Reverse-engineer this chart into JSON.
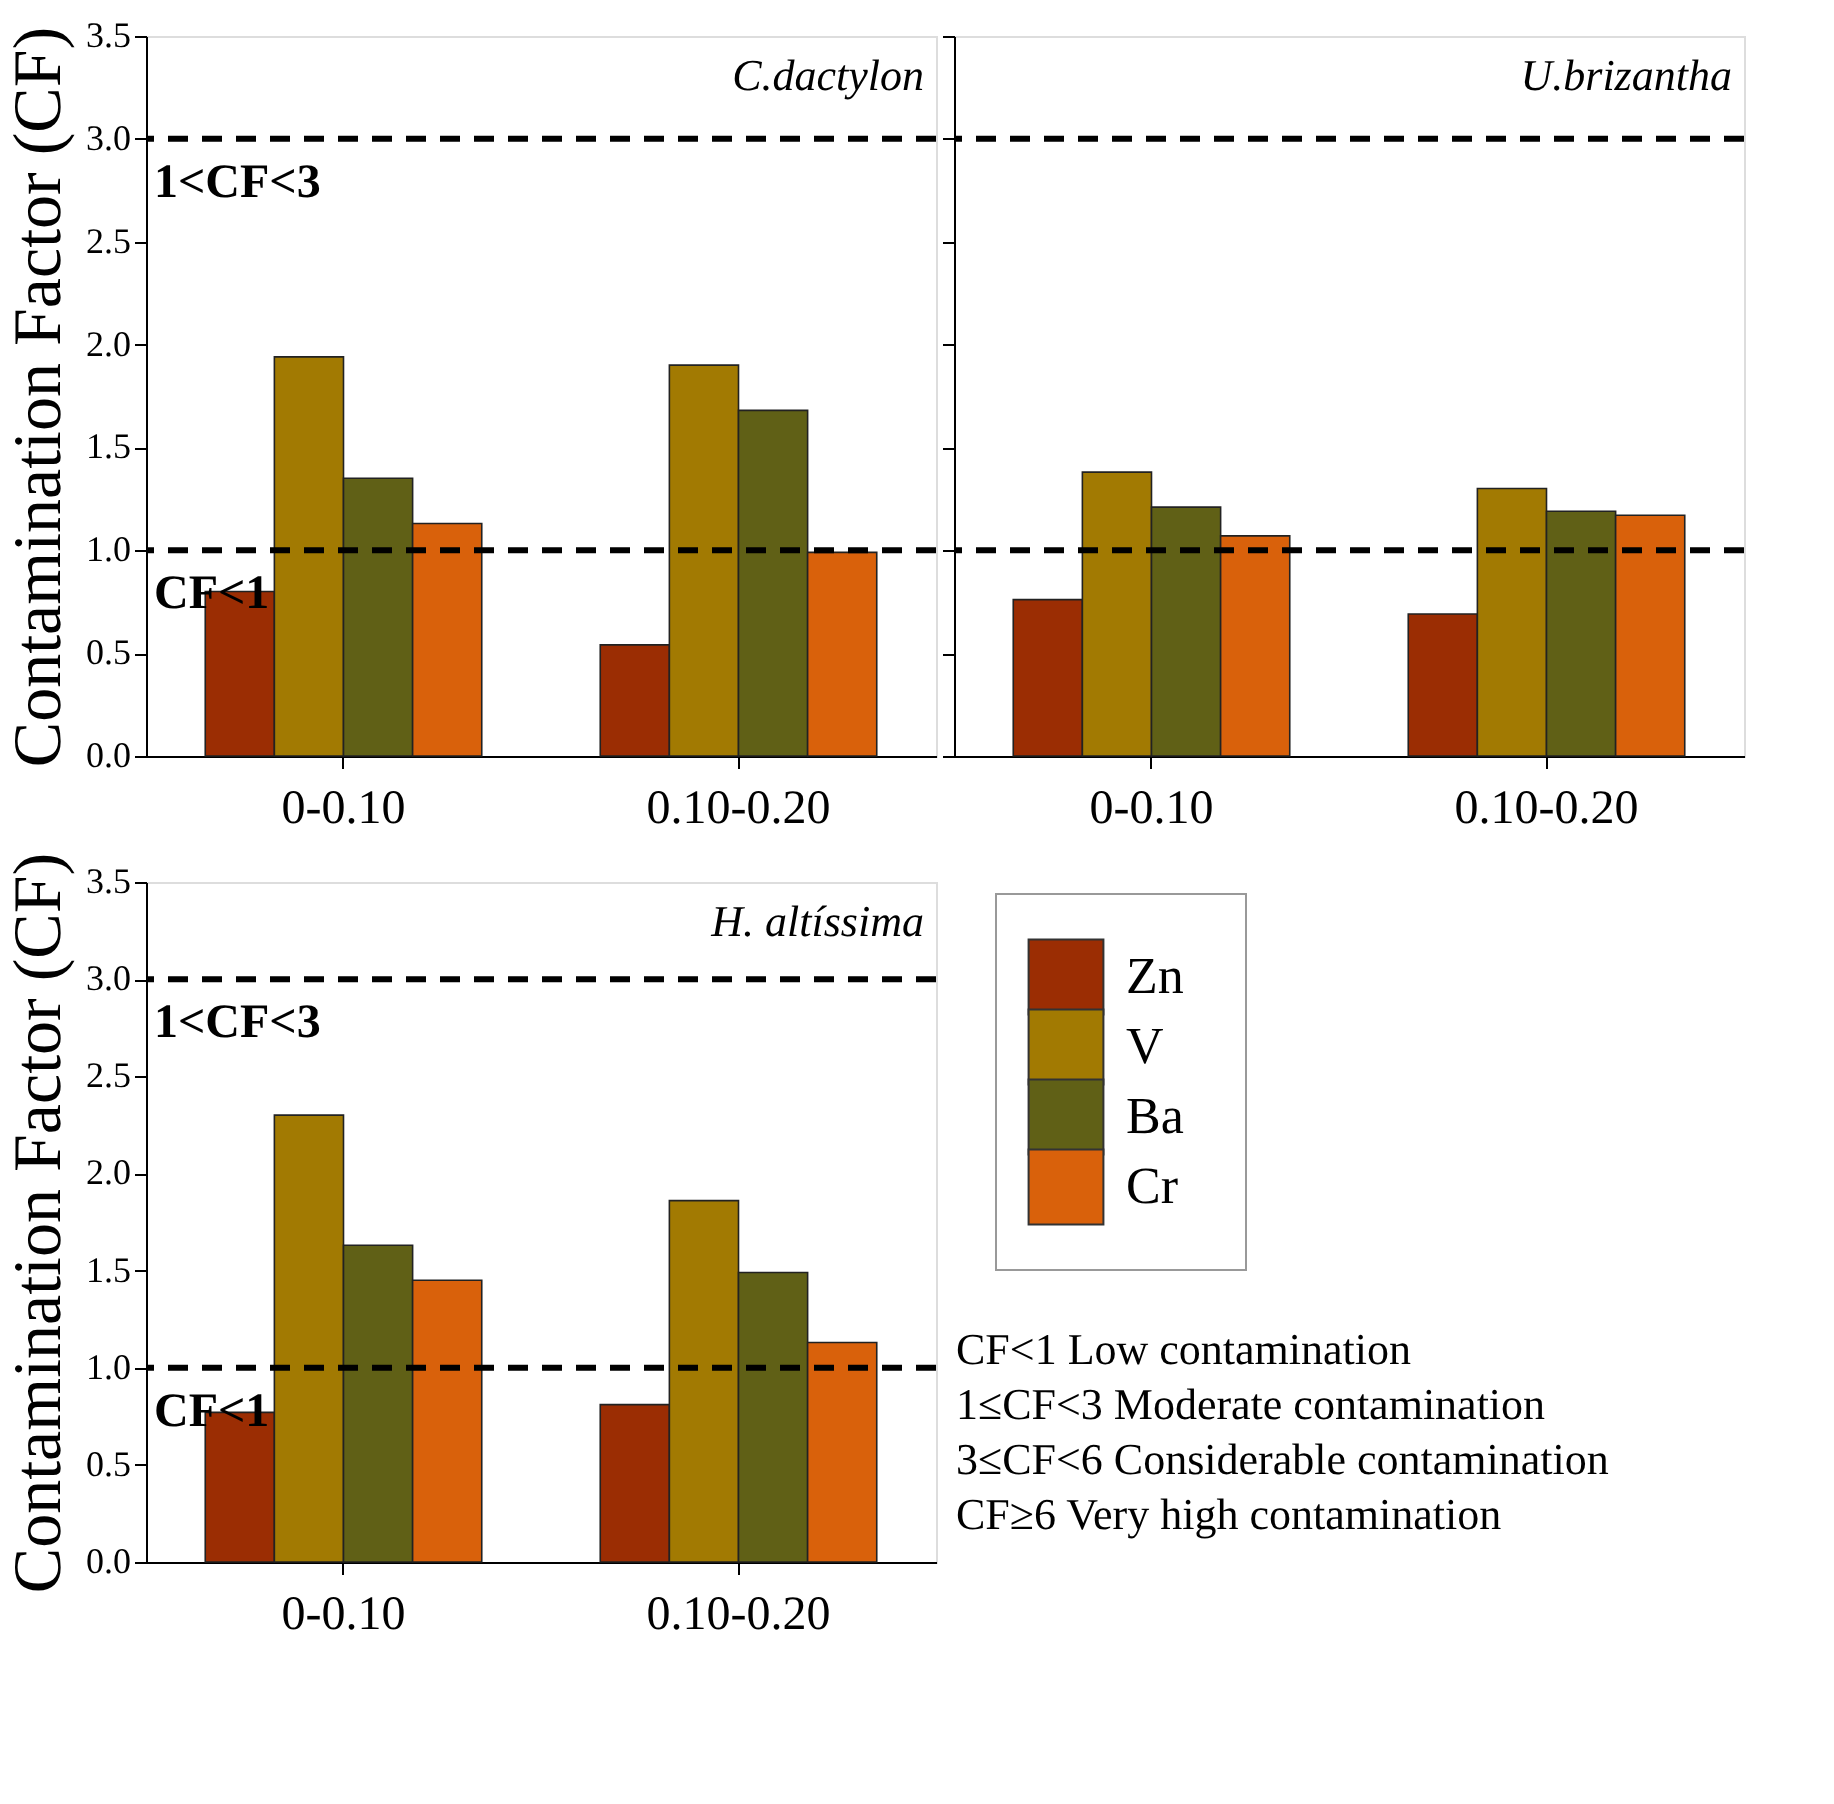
{
  "chart_data": [
    {
      "type": "bar",
      "title": "C.dactylon",
      "ylabel": "Contamination Factor (CF)",
      "categories": [
        "0-0.10",
        "0.10-0.20"
      ],
      "series": [
        {
          "color": "#9b2d03",
          "values": [
            0.8,
            0.54
          ]
        },
        {
          "color": "#a27a02",
          "values": [
            1.94,
            1.9
          ]
        },
        {
          "color": "#606016",
          "values": [
            1.35,
            1.68
          ]
        },
        {
          "color": "#d9610b",
          "values": [
            1.13,
            0.99
          ]
        }
      ],
      "ylim": [
        0,
        3.5
      ],
      "yticks": [
        {
          "value": 0,
          "label": "0.0"
        },
        0.5,
        {
          "value": 1,
          "label": "1.0"
        },
        1.5,
        {
          "value": 2,
          "label": "2.0"
        },
        2.5,
        {
          "value": 3,
          "label": "3.0"
        },
        3.5
      ],
      "ref_lines": [
        {
          "axis": "y",
          "value": 1,
          "label": "CF<1",
          "line_style": "dashed"
        },
        {
          "axis": "y",
          "value": 3,
          "label": "1<CF<3",
          "line_style": "dashed"
        }
      ]
    },
    {
      "type": "bar",
      "title": "U.brizantha",
      "categories": [
        "0-0.10",
        "0.10-0.20"
      ],
      "series": [
        {
          "color": "#9b2d03",
          "values": [
            0.76,
            0.69
          ]
        },
        {
          "color": "#a27a02",
          "values": [
            1.38,
            1.3
          ]
        },
        {
          "color": "#606016",
          "values": [
            1.21,
            1.19
          ]
        },
        {
          "color": "#d9610b",
          "values": [
            1.07,
            1.17
          ]
        }
      ],
      "ylim": [
        0,
        3.5
      ],
      "yticks": [
        0,
        0.5,
        1,
        1.5,
        2,
        2.5,
        3,
        3.5
      ],
      "tick_labels": "x",
      "ref_lines": [
        {
          "axis": "y",
          "value": 1,
          "line_style": "dashed"
        },
        {
          "axis": "y",
          "value": 3,
          "line_style": "dashed"
        }
      ]
    },
    {
      "type": "bar",
      "title": "H. altíssima",
      "ylabel": "Contamination Factor (CF)",
      "categories": [
        "0-0.10",
        "0.10-0.20"
      ],
      "series": [
        {
          "name": "Zn",
          "color": "#9b2d03",
          "values": [
            0.77,
            0.81
          ]
        },
        {
          "name": "V",
          "color": "#a27a02",
          "values": [
            2.3,
            1.86
          ]
        },
        {
          "name": "Ba",
          "color": "#606016",
          "values": [
            1.63,
            1.49
          ]
        },
        {
          "name": "Cr",
          "color": "#d9610b",
          "values": [
            1.45,
            1.13
          ]
        }
      ],
      "ylim": [
        0,
        3.5
      ],
      "yticks": [
        {
          "value": 0,
          "label": "0.0"
        },
        0.5,
        {
          "value": 1,
          "label": "1.0"
        },
        1.5,
        {
          "value": 2,
          "label": "2.0"
        },
        2.5,
        {
          "value": 3,
          "label": "3.0"
        },
        3.5
      ],
      "legend": "right",
      "ref_lines": [
        {
          "axis": "y",
          "value": 1,
          "label": "CF<1",
          "line_style": "dashed"
        },
        {
          "axis": "y",
          "value": 3,
          "label": "1<CF<3",
          "line_style": "dashed"
        }
      ],
      "annotations": [
        "CF<1 Low contamination",
        "1≤CF<3 Moderate contamination",
        "3≤CF<6 Considerable contamination",
        "CF≥6 Very high contamination"
      ]
    }
  ]
}
